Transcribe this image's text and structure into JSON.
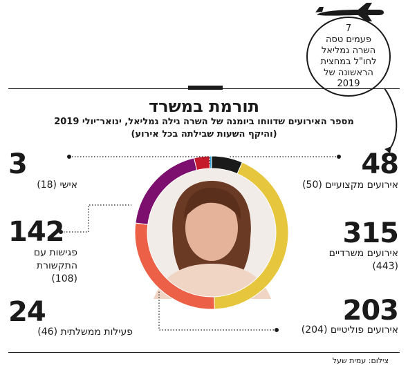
{
  "title": "תורמת במשרד",
  "subtitle_line1": "מספר האירועים שדווחו ביומנה של השרה גילה גמליאל, ינואר־יולי 2019",
  "subtitle_line2": "(והיקף השעות שבילתה בכל אירוע)",
  "callout_lines": [
    "7",
    "פעמים טסה",
    "השרה גמליאל",
    "לחו\"ל במחצית",
    "הראשונה של",
    "2019"
  ],
  "photo_credit": "צילום: עמית שעל",
  "chart_data": {
    "type": "pie",
    "title": "תורמת במשרד",
    "subtitle": "מספר האירועים שדווחו ביומנה של השרה גילה גמליאל, ינואר־יולי 2019 (והיקף השעות שבילתה בכל אירוע)",
    "categories": [
      "אירועים מקצועיים",
      "אירועים משרדיים",
      "אירועים פוליטיים",
      "פגישות עם התקשורת",
      "פעילות ממשלתית",
      "אישי"
    ],
    "values": [
      48,
      315,
      203,
      142,
      24,
      3
    ],
    "hours": [
      50,
      443,
      204,
      108,
      46,
      18
    ],
    "hours_labels": [
      "(50)",
      "(443)",
      "(204)",
      "(108)",
      "(46)",
      "(18)"
    ],
    "colors": [
      "#1a1a1a",
      "#e6c63c",
      "#ec6048",
      "#7d0f6e",
      "#c41a2b",
      "#2ea6de"
    ],
    "donut": true
  }
}
